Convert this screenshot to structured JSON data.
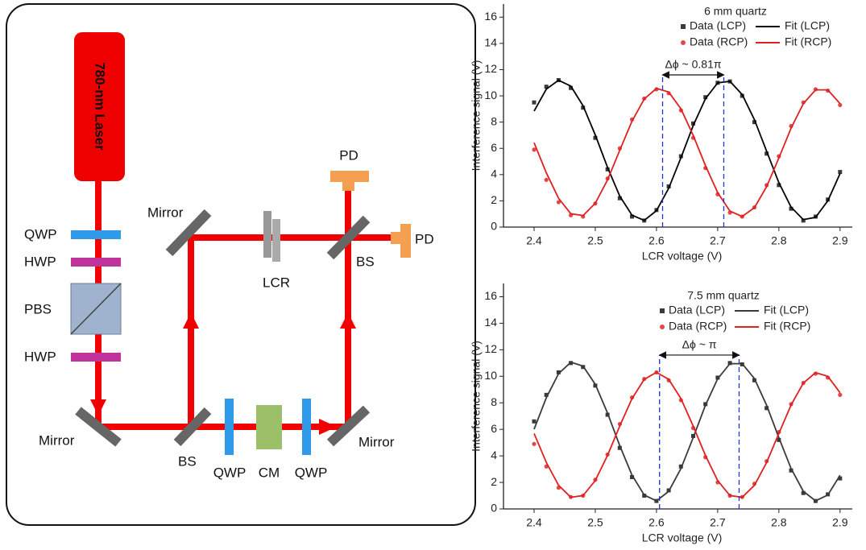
{
  "diagram": {
    "labels": {
      "laser": "780-nm Laser",
      "qwp1": "QWP",
      "hwp1": "HWP",
      "pbs": "PBS",
      "hwp2": "HWP",
      "mirror1": "Mirror",
      "bs1": "BS",
      "qwp2": "QWP",
      "cm": "CM",
      "qwp3": "QWP",
      "mirror2": "Mirror",
      "mirror3": "Mirror",
      "lcr": "LCR",
      "bs2": "BS",
      "pd1": "PD",
      "pd2": "PD"
    }
  },
  "chart_data": [
    {
      "type": "scatter",
      "legend_title": "6 mm quartz",
      "x_label": "LCR voltage (V)",
      "y_label": "Interference signal (V)",
      "xlim": [
        2.35,
        2.92
      ],
      "ylim": [
        0,
        17
      ],
      "xticks": [
        2.4,
        2.5,
        2.6,
        2.7,
        2.8,
        2.9
      ],
      "yticks": [
        0,
        2,
        4,
        6,
        8,
        10,
        12,
        14,
        16
      ],
      "grid": false,
      "x": [
        2.4,
        2.42,
        2.44,
        2.46,
        2.48,
        2.5,
        2.52,
        2.54,
        2.56,
        2.58,
        2.6,
        2.62,
        2.64,
        2.66,
        2.68,
        2.7,
        2.72,
        2.74,
        2.76,
        2.78,
        2.8,
        2.82,
        2.84,
        2.86,
        2.88,
        2.9
      ],
      "series": [
        {
          "name": "Data (LCP)",
          "kind": "points",
          "marker": "square",
          "color": "#3a3a3a",
          "values": [
            9.5,
            10.7,
            11.2,
            10.6,
            9.1,
            6.8,
            4.4,
            2.2,
            0.8,
            0.5,
            1.3,
            3.1,
            5.4,
            7.9,
            9.9,
            11.0,
            11.1,
            10.0,
            8.0,
            5.6,
            3.2,
            1.4,
            0.5,
            0.8,
            2.1,
            4.2
          ]
        },
        {
          "name": "Data (RCP)",
          "kind": "points",
          "marker": "circle",
          "color": "#e2474a",
          "values": [
            5.9,
            3.6,
            1.9,
            0.9,
            0.8,
            1.8,
            3.7,
            6.0,
            8.2,
            9.8,
            10.5,
            10.2,
            8.9,
            6.8,
            4.5,
            2.5,
            1.1,
            0.8,
            1.5,
            3.2,
            5.4,
            7.7,
            9.5,
            10.5,
            10.4,
            9.3
          ]
        },
        {
          "name": "Fit (LCP)",
          "kind": "line",
          "color": "#000000",
          "values": [
            8.84,
            10.52,
            11.19,
            10.74,
            9.24,
            7.03,
            4.56,
            2.36,
            0.91,
            0.51,
            1.25,
            2.96,
            5.29,
            7.74,
            9.78,
            10.99,
            11.11,
            10.1,
            8.19,
            5.79,
            3.39,
            1.52,
            0.57,
            0.74,
            2.0,
            4.08
          ]
        },
        {
          "name": "Fit (RCP)",
          "kind": "line",
          "color": "#e02020",
          "values": [
            6.43,
            4.13,
            2.19,
            1.02,
            0.88,
            1.81,
            3.59,
            5.85,
            8.07,
            9.76,
            10.57,
            10.29,
            9.01,
            6.99,
            4.69,
            2.62,
            1.22,
            0.81,
            1.48,
            3.08,
            5.26,
            7.54,
            9.41,
            10.46,
            10.46,
            9.41
          ]
        }
      ],
      "annotation": {
        "text": "Δϕ ~ 0.81π",
        "x": [
          2.61,
          2.71
        ],
        "y": 11.6
      }
    },
    {
      "type": "scatter",
      "legend_title": "7.5 mm quartz",
      "x_label": "LCR voltage (V)",
      "y_label": "Interference signal (V)",
      "xlim": [
        2.35,
        2.92
      ],
      "ylim": [
        0,
        17
      ],
      "xticks": [
        2.4,
        2.5,
        2.6,
        2.7,
        2.8,
        2.9
      ],
      "yticks": [
        0,
        2,
        4,
        6,
        8,
        10,
        12,
        14,
        16
      ],
      "grid": false,
      "x": [
        2.4,
        2.42,
        2.44,
        2.46,
        2.48,
        2.5,
        2.52,
        2.54,
        2.56,
        2.58,
        2.6,
        2.62,
        2.64,
        2.66,
        2.68,
        2.7,
        2.72,
        2.74,
        2.76,
        2.78,
        2.8,
        2.82,
        2.84,
        2.86,
        2.88,
        2.9
      ],
      "series": [
        {
          "name": "Data (LCP)",
          "kind": "points",
          "marker": "square",
          "color": "#3a3a3a",
          "values": [
            6.6,
            8.6,
            10.3,
            11.0,
            10.7,
            9.3,
            7.1,
            4.6,
            2.4,
            1.0,
            0.6,
            1.4,
            3.2,
            5.5,
            7.9,
            9.9,
            11.0,
            10.9,
            9.7,
            7.6,
            5.2,
            2.9,
            1.2,
            0.6,
            1.1,
            2.3
          ]
        },
        {
          "name": "Data (RCP)",
          "kind": "points",
          "marker": "circle",
          "color": "#e2474a",
          "values": [
            4.9,
            3.2,
            1.6,
            0.9,
            1.0,
            2.2,
            4.1,
            6.4,
            8.4,
            9.8,
            10.3,
            9.7,
            8.2,
            6.1,
            3.9,
            2.0,
            1.0,
            0.9,
            1.9,
            3.6,
            5.8,
            7.9,
            9.5,
            10.2,
            9.9,
            8.6
          ]
        },
        {
          "name": "Fit (LCP)",
          "kind": "line",
          "color": "#3a3a3a",
          "values": [
            6.01,
            8.39,
            10.2,
            11.06,
            10.77,
            9.4,
            7.24,
            4.77,
            2.55,
            1.05,
            0.6,
            1.33,
            3.05,
            5.38,
            7.82,
            9.82,
            10.95,
            10.95,
            9.83,
            7.82,
            5.38,
            3.05,
            1.33,
            0.61,
            1.05,
            2.54
          ]
        },
        {
          "name": "Fit (RCP)",
          "kind": "line",
          "color": "#e02020",
          "values": [
            5.69,
            3.5,
            1.78,
            0.88,
            1.01,
            2.14,
            4.03,
            6.25,
            8.32,
            9.77,
            10.3,
            9.77,
            8.32,
            6.25,
            4.03,
            2.14,
            1.01,
            0.88,
            1.78,
            3.5,
            5.69,
            7.84,
            9.49,
            10.27,
            10.0,
            8.76
          ]
        }
      ],
      "annotation": {
        "text": "Δϕ ~ π",
        "x": [
          2.605,
          2.735
        ],
        "y": 11.6
      }
    }
  ]
}
